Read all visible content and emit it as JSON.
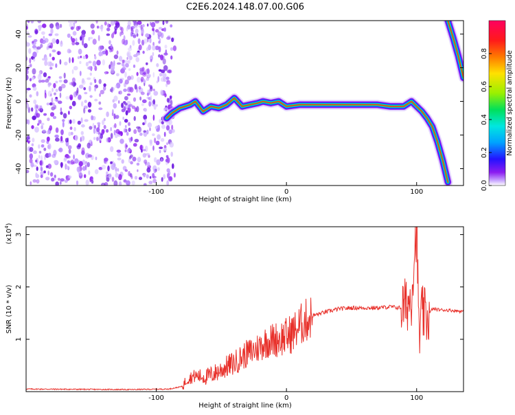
{
  "title": "C2E6.2024.148.07.00.G06",
  "chart_data": [
    {
      "type": "heatmap",
      "xlabel": "Height of straight line (km)",
      "ylabel": "Frequency (Hz)",
      "xlim": [
        -200,
        136
      ],
      "ylim": [
        -50,
        48
      ],
      "x_ticks": [
        -100,
        0,
        100
      ],
      "y_ticks": [
        -40,
        -20,
        0,
        20,
        40
      ],
      "colorbar": {
        "label": "Normalized spectral amplitude",
        "range": [
          0.0,
          1.0
        ],
        "ticks": [
          0.0,
          0.2,
          0.4,
          0.6,
          0.8
        ],
        "colors": [
          "#ffffff",
          "#c9a7ff",
          "#8b1cf0",
          "#2412ff",
          "#00a2ff",
          "#00e7e0",
          "#00e05a",
          "#9af000",
          "#ffe100",
          "#ff7a00",
          "#ff1a1a",
          "#ff0060"
        ]
      },
      "traces": [
        {
          "name_hint": "",
          "points": [
            [
              -92,
              -10
            ],
            [
              -88,
              -7
            ],
            [
              -82,
              -4
            ],
            [
              -78,
              -3
            ],
            [
              -74,
              -2
            ],
            [
              -70,
              0
            ],
            [
              -64,
              -6
            ],
            [
              -58,
              -3
            ],
            [
              -52,
              -4
            ],
            [
              -46,
              -2
            ],
            [
              -40,
              2
            ],
            [
              -34,
              -3
            ],
            [
              -28,
              -2
            ],
            [
              -22,
              -1
            ],
            [
              -18,
              0
            ],
            [
              -12,
              -1
            ],
            [
              -6,
              0
            ],
            [
              0,
              -3
            ],
            [
              10,
              -2
            ],
            [
              30,
              -2
            ],
            [
              50,
              -2
            ],
            [
              70,
              -2
            ],
            [
              80,
              -3
            ],
            [
              90,
              -3
            ],
            [
              96,
              0
            ],
            [
              100,
              -3
            ],
            [
              104,
              -6
            ],
            [
              108,
              -10
            ],
            [
              112,
              -15
            ],
            [
              116,
              -24
            ],
            [
              120,
              -35
            ],
            [
              124,
              -48
            ]
          ]
        },
        {
          "name_hint": "",
          "points": [
            [
              124,
              48
            ],
            [
              128,
              38
            ],
            [
              132,
              27
            ],
            [
              136,
              14
            ]
          ]
        }
      ],
      "noise_region": [
        -200,
        -90
      ]
    },
    {
      "type": "line",
      "xlabel": "Height of straight line (km)",
      "ylabel": "SNR (10 * v/v)",
      "multiplier_label": "(x10",
      "multiplier_exp": "4",
      "multiplier_close": ")",
      "xlim": [
        -200,
        136
      ],
      "ylim": [
        0,
        3.15
      ],
      "x_ticks": [
        -100,
        0,
        100
      ],
      "y_ticks": [
        1,
        2,
        3
      ],
      "color": "#e8302a",
      "series": [
        {
          "x": [
            -200,
            -120,
            -90,
            -80,
            -76,
            -70,
            -62,
            -55,
            -48,
            -40,
            -32,
            -24,
            -16,
            -8,
            0,
            6,
            12,
            20,
            30,
            40,
            50,
            60,
            70,
            80,
            88,
            92,
            96,
            98,
            100,
            102,
            104,
            108,
            112,
            120,
            128,
            136
          ],
          "y": [
            0.05,
            0.04,
            0.05,
            0.1,
            0.25,
            0.3,
            0.28,
            0.35,
            0.45,
            0.55,
            0.7,
            0.8,
            0.95,
            1.0,
            1.05,
            1.15,
            1.3,
            1.45,
            1.52,
            1.58,
            1.6,
            1.6,
            1.6,
            1.62,
            1.6,
            1.65,
            1.8,
            2.6,
            3.1,
            1.0,
            1.5,
            1.4,
            1.58,
            1.56,
            1.55,
            1.53
          ]
        }
      ]
    }
  ]
}
